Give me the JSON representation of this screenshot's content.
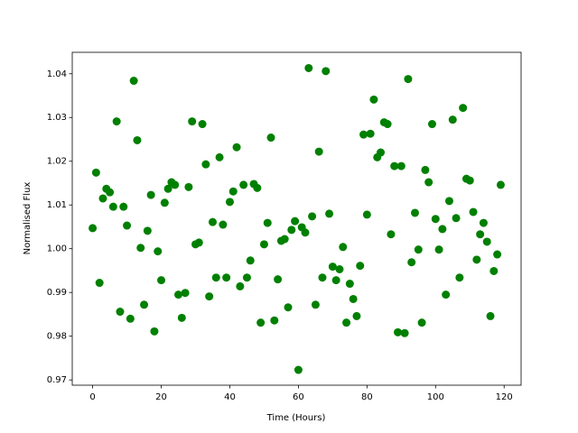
{
  "chart_data": {
    "type": "scatter",
    "x_label": "Time (Hours)",
    "y_label": "Normalised Flux",
    "color": "#008000",
    "x": [
      0,
      1,
      2,
      3,
      4,
      5,
      6,
      7,
      8,
      9,
      10,
      11,
      12,
      13,
      14,
      15,
      16,
      17,
      18,
      19,
      20,
      21,
      22,
      23,
      24,
      25,
      26,
      27,
      28,
      29,
      30,
      31,
      32,
      33,
      34,
      35,
      36,
      37,
      38,
      39,
      40,
      41,
      42,
      43,
      44,
      45,
      46,
      47,
      48,
      49,
      50,
      51,
      52,
      53,
      54,
      55,
      56,
      57,
      58,
      59,
      60,
      61,
      62,
      63,
      64,
      65,
      66,
      67,
      68,
      69,
      70,
      71,
      72,
      73,
      74,
      75,
      76,
      77,
      78,
      79,
      80,
      81,
      82,
      83,
      84,
      85,
      86,
      87,
      88,
      89,
      90,
      91,
      92,
      93,
      94,
      95,
      96,
      97,
      98,
      99,
      100,
      101,
      102,
      103,
      104,
      105,
      106,
      107,
      108,
      109,
      110,
      111,
      112,
      113,
      114,
      115,
      116,
      117,
      118,
      119
    ],
    "values": [
      1.0047,
      1.0174,
      0.9922,
      1.0115,
      1.0137,
      1.0129,
      1.0096,
      1.0291,
      0.9856,
      1.0096,
      1.0053,
      0.984,
      1.0384,
      1.0248,
      1.0002,
      0.9872,
      1.0041,
      1.0123,
      0.9811,
      0.9994,
      0.9928,
      1.0105,
      1.0137,
      1.0152,
      1.0146,
      0.9895,
      0.9842,
      0.9899,
      1.0141,
      1.0291,
      1.001,
      1.0014,
      1.0285,
      1.0193,
      0.9891,
      1.0061,
      0.9934,
      1.0209,
      1.0055,
      0.9934,
      1.0107,
      1.0131,
      1.0232,
      0.9914,
      1.0146,
      0.9934,
      0.9973,
      1.0148,
      1.0139,
      0.9831,
      1.001,
      1.0059,
      1.0254,
      0.9836,
      0.993,
      1.0018,
      1.0022,
      0.9866,
      1.0043,
      1.0063,
      0.9723,
      1.0049,
      1.0037,
      1.0413,
      1.0074,
      0.9872,
      1.0222,
      0.9934,
      1.0406,
      1.008,
      0.9959,
      0.9928,
      0.9953,
      1.0004,
      0.9831,
      0.992,
      0.9885,
      0.9846,
      0.9961,
      1.0261,
      1.0078,
      1.0263,
      1.0341,
      1.0209,
      1.022,
      1.0289,
      1.0285,
      1.0033,
      1.0189,
      0.9809,
      1.0189,
      0.9807,
      1.0388,
      0.9969,
      1.0082,
      0.9998,
      0.9831,
      1.018,
      1.0152,
      1.0285,
      1.0068,
      0.9998,
      1.0045,
      0.9895,
      1.0109,
      1.0295,
      1.007,
      0.9934,
      1.0322,
      1.016,
      1.0156,
      1.0084,
      0.9975,
      1.0033,
      1.0059,
      1.0016,
      0.9846,
      0.9949,
      0.9987,
      1.0146
    ],
    "xlim": [
      -5.95,
      124.95
    ],
    "xticks": [
      0,
      20,
      40,
      60,
      80,
      100,
      120
    ],
    "ylim": [
      0.9688,
      1.0449
    ],
    "yticks": [
      0.97,
      0.98,
      0.99,
      {
        "value": 1.0,
        "label": "1.00"
      },
      1.01,
      1.02,
      1.03,
      1.04
    ]
  }
}
